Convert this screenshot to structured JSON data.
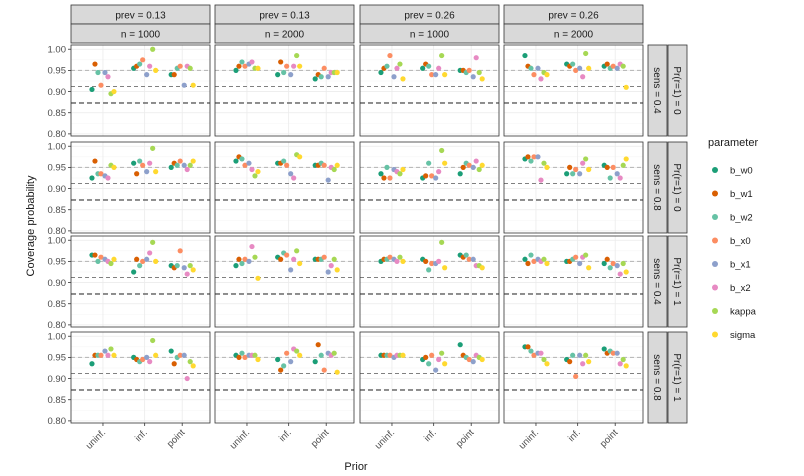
{
  "chart_data": {
    "type": "scatter",
    "title": "",
    "xlabel": "Prior",
    "ylabel": "Coverage probability",
    "x_categories": [
      "uninf.",
      "inf.",
      "point"
    ],
    "y_ticks": [
      0.8,
      0.85,
      0.9,
      0.95,
      1.0
    ],
    "y_tick_labels": [
      "0.80",
      "0.85",
      "0.90",
      "0.95",
      "1.00"
    ],
    "ylim": [
      0.795,
      1.01
    ],
    "reference_lines": [
      0.95,
      0.912,
      0.873
    ],
    "legend": {
      "title": "parameter",
      "placement": "right",
      "items": [
        {
          "name": "b_w0",
          "color": "#1b9e77"
        },
        {
          "name": "b_w1",
          "color": "#d95f02"
        },
        {
          "name": "b_w2",
          "color": "#66c2a5"
        },
        {
          "name": "b_x0",
          "color": "#fc8d62"
        },
        {
          "name": "b_x1",
          "color": "#8da0cb"
        },
        {
          "name": "b_x2",
          "color": "#e78ac3"
        },
        {
          "name": "kappa",
          "color": "#a6d854"
        },
        {
          "name": "sigma",
          "color": "#ffd92f"
        }
      ]
    },
    "col_strips": [
      {
        "top": "prev = 0.13",
        "bottom": "n = 1000"
      },
      {
        "top": "prev = 0.13",
        "bottom": "n = 2000"
      },
      {
        "top": "prev = 0.26",
        "bottom": "n = 1000"
      },
      {
        "top": "prev = 0.26",
        "bottom": "n = 2000"
      }
    ],
    "row_strips": [
      {
        "inner": "sens = 0.4",
        "outer": "Pr(r=1) = 0"
      },
      {
        "inner": "sens = 0.8",
        "outer": "Pr(r=1) = 0"
      },
      {
        "inner": "sens = 0.4",
        "outer": "Pr(r=1) = 1"
      },
      {
        "inner": "sens = 0.8",
        "outer": "Pr(r=1) = 1"
      }
    ],
    "panels": [
      [
        [
          [
            0.905,
            0.965,
            0.945,
            0.915,
            0.945,
            0.935,
            0.895,
            0.9
          ],
          [
            0.955,
            0.96,
            0.965,
            0.975,
            0.94,
            0.96,
            1.0,
            0.95
          ],
          [
            0.94,
            0.94,
            0.955,
            0.96,
            0.915,
            0.96,
            0.955,
            0.915
          ]
        ],
        [
          [
            0.95,
            0.96,
            0.97,
            0.96,
            0.965,
            0.97,
            0.955,
            0.955
          ],
          [
            0.94,
            0.97,
            0.945,
            0.96,
            0.94,
            0.96,
            0.985,
            0.96
          ],
          [
            0.93,
            0.94,
            0.935,
            0.955,
            0.935,
            0.945,
            0.945,
            0.945
          ]
        ],
        [
          [
            0.945,
            0.955,
            0.96,
            0.985,
            0.935,
            0.955,
            0.965,
            0.93
          ],
          [
            0.955,
            0.965,
            0.96,
            0.94,
            0.94,
            0.955,
            0.985,
            0.94
          ],
          [
            0.95,
            0.95,
            0.945,
            0.95,
            0.935,
            0.98,
            0.945,
            0.93
          ]
        ],
        [
          [
            0.985,
            0.96,
            0.955,
            0.94,
            0.955,
            0.93,
            0.945,
            0.94
          ],
          [
            0.965,
            0.96,
            0.965,
            0.95,
            0.955,
            0.935,
            0.99,
            0.955
          ],
          [
            0.96,
            0.965,
            0.955,
            0.96,
            0.955,
            0.965,
            0.96,
            0.91
          ]
        ]
      ],
      [
        [
          [
            0.925,
            0.965,
            0.935,
            0.935,
            0.93,
            0.925,
            0.955,
            0.95
          ],
          [
            0.96,
            0.935,
            0.965,
            0.955,
            0.94,
            0.96,
            0.995,
            0.94
          ],
          [
            0.95,
            0.96,
            0.955,
            0.965,
            0.955,
            0.945,
            0.955,
            0.965
          ]
        ],
        [
          [
            0.965,
            0.975,
            0.97,
            0.955,
            0.96,
            0.945,
            0.93,
            0.94
          ],
          [
            0.96,
            0.96,
            0.965,
            0.955,
            0.935,
            0.925,
            0.98,
            0.975
          ],
          [
            0.955,
            0.955,
            0.96,
            0.955,
            0.92,
            0.95,
            0.945,
            0.955
          ]
        ],
        [
          [
            0.935,
            0.925,
            0.95,
            0.925,
            0.945,
            0.94,
            0.935,
            0.945
          ],
          [
            0.925,
            0.93,
            0.96,
            0.93,
            0.925,
            0.94,
            0.99,
            0.96
          ],
          [
            0.935,
            0.95,
            0.96,
            0.955,
            0.95,
            0.965,
            0.945,
            0.955
          ]
        ],
        [
          [
            0.97,
            0.975,
            0.965,
            0.975,
            0.975,
            0.92,
            0.96,
            0.95
          ],
          [
            0.935,
            0.95,
            0.935,
            0.945,
            0.935,
            0.96,
            0.97,
            0.945
          ],
          [
            0.955,
            0.95,
            0.925,
            0.95,
            0.935,
            0.925,
            0.955,
            0.97
          ]
        ]
      ],
      [
        [
          [
            0.965,
            0.965,
            0.95,
            0.96,
            0.955,
            0.95,
            0.945,
            0.955
          ],
          [
            0.925,
            0.955,
            0.94,
            0.95,
            0.955,
            0.97,
            0.995,
            0.95
          ],
          [
            0.94,
            0.935,
            0.94,
            0.975,
            0.935,
            0.92,
            0.94,
            0.93
          ]
        ],
        [
          [
            0.94,
            0.955,
            0.945,
            0.955,
            0.95,
            0.985,
            0.96,
            0.91
          ],
          [
            0.96,
            0.955,
            0.97,
            0.965,
            0.93,
            0.955,
            0.975,
            0.945
          ],
          [
            0.955,
            0.955,
            0.955,
            0.96,
            0.925,
            0.94,
            0.955,
            0.93
          ]
        ],
        [
          [
            0.95,
            0.955,
            0.955,
            0.96,
            0.955,
            0.95,
            0.96,
            0.95
          ],
          [
            0.955,
            0.95,
            0.93,
            0.945,
            0.945,
            0.95,
            0.995,
            0.935
          ],
          [
            0.965,
            0.96,
            0.965,
            0.955,
            0.955,
            0.94,
            0.94,
            0.935
          ]
        ],
        [
          [
            0.955,
            0.945,
            0.965,
            0.95,
            0.955,
            0.95,
            0.955,
            0.945
          ],
          [
            0.95,
            0.95,
            0.955,
            0.96,
            0.945,
            0.96,
            0.965,
            0.935
          ],
          [
            0.945,
            0.955,
            0.935,
            0.945,
            0.94,
            0.92,
            0.945,
            0.925
          ]
        ]
      ],
      [
        [
          [
            0.935,
            0.955,
            0.955,
            0.955,
            0.965,
            0.955,
            0.97,
            0.955
          ],
          [
            0.95,
            0.945,
            0.94,
            0.945,
            0.95,
            0.94,
            0.99,
            0.955
          ],
          [
            0.965,
            0.935,
            0.95,
            0.955,
            0.955,
            0.9,
            0.94,
            0.93
          ]
        ],
        [
          [
            0.955,
            0.95,
            0.96,
            0.95,
            0.955,
            0.955,
            0.955,
            0.945
          ],
          [
            0.945,
            0.92,
            0.93,
            0.96,
            0.94,
            0.97,
            0.965,
            0.955
          ],
          [
            0.94,
            0.98,
            0.955,
            0.92,
            0.96,
            0.955,
            0.96,
            0.915
          ]
        ],
        [
          [
            0.955,
            0.955,
            0.955,
            0.955,
            0.95,
            0.955,
            0.955,
            0.955
          ],
          [
            0.945,
            0.95,
            0.935,
            0.955,
            0.92,
            0.945,
            0.96,
            0.935
          ],
          [
            0.98,
            0.955,
            0.95,
            0.945,
            0.94,
            0.955,
            0.95,
            0.945
          ]
        ],
        [
          [
            0.975,
            0.975,
            0.965,
            0.955,
            0.96,
            0.96,
            0.945,
            0.935
          ],
          [
            0.945,
            0.94,
            0.955,
            0.905,
            0.955,
            0.935,
            0.955,
            0.94
          ],
          [
            0.97,
            0.96,
            0.965,
            0.96,
            0.96,
            0.935,
            0.945,
            0.93
          ]
        ]
      ]
    ]
  }
}
